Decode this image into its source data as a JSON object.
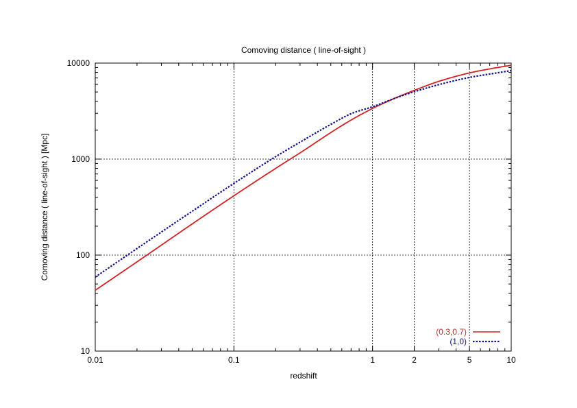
{
  "chart_data": {
    "type": "line",
    "title": "Comoving distance ( line-of-sight )",
    "xlabel": "redshift",
    "ylabel": "Comoving distance ( line-of-sight ) [Mpc]",
    "x_scale": "log",
    "y_scale": "log",
    "xlim": [
      0.01,
      10
    ],
    "ylim": [
      10,
      10000
    ],
    "grid": true,
    "legend_position": "bottom-right",
    "x_ticks": [
      {
        "value": 0.01,
        "label": "0.01"
      },
      {
        "value": 0.1,
        "label": "0.1"
      },
      {
        "value": 1,
        "label": "1"
      },
      {
        "value": 2,
        "label": "2"
      },
      {
        "value": 5,
        "label": "5"
      },
      {
        "value": 10,
        "label": "10"
      }
    ],
    "y_ticks": [
      {
        "value": 10,
        "label": "10"
      },
      {
        "value": 100,
        "label": "100"
      },
      {
        "value": 1000,
        "label": "1000"
      },
      {
        "value": 10000,
        "label": "10000"
      }
    ],
    "series": [
      {
        "name": "(0.3,0.7)",
        "color": "#d42020",
        "line_style": "solid",
        "x": [
          0.01,
          0.02,
          0.05,
          0.1,
          0.2,
          0.3,
          0.5,
          0.7,
          1,
          1.5,
          2,
          3,
          5,
          7,
          10
        ],
        "y": [
          43,
          85,
          211,
          415,
          800,
          1160,
          1890,
          2550,
          3370,
          4400,
          5200,
          6450,
          7900,
          8700,
          9500
        ]
      },
      {
        "name": "(1,0)",
        "color": "#101090",
        "line_style": "dotted",
        "x": [
          0.01,
          0.02,
          0.05,
          0.1,
          0.2,
          0.3,
          0.5,
          0.7,
          1,
          1.5,
          2,
          3,
          5,
          7,
          10
        ],
        "y": [
          59,
          117,
          286,
          558,
          1060,
          1500,
          2300,
          2970,
          3510,
          4380,
          5030,
          5960,
          7090,
          7690,
          8350
        ]
      }
    ]
  }
}
